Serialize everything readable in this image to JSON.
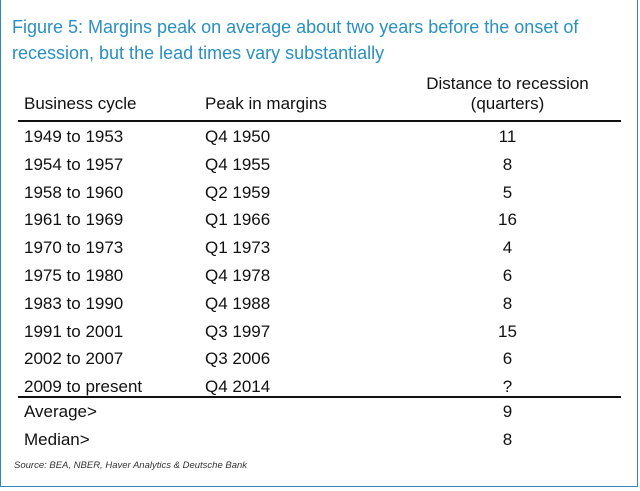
{
  "title": "Figure 5: Margins peak on average about two years before the onset of recession, but the lead times vary substantially",
  "chart_data": {
    "type": "table",
    "columns": [
      "Business cycle",
      "Peak in margins",
      "Distance to recession\n(quarters)"
    ],
    "rows": [
      [
        "1949 to 1953",
        "Q4 1950",
        "11"
      ],
      [
        "1954 to 1957",
        "Q4 1955",
        "8"
      ],
      [
        "1958 to 1960",
        "Q2 1959",
        "5"
      ],
      [
        "1961 to 1969",
        "Q1 1966",
        "16"
      ],
      [
        "1970 to 1973",
        "Q1 1973",
        "4"
      ],
      [
        "1975 to 1980",
        "Q4 1978",
        "6"
      ],
      [
        "1983 to 1990",
        "Q4 1988",
        "8"
      ],
      [
        "1991 to 2001",
        "Q3 1997",
        "15"
      ],
      [
        "2002 to 2007",
        "Q3 2006",
        "6"
      ],
      [
        "2009 to present",
        "Q4 2014",
        "?"
      ]
    ],
    "summary": [
      [
        "Average>",
        "",
        "9"
      ],
      [
        "Median>",
        "",
        "8"
      ]
    ]
  },
  "header": {
    "cycle": "Business cycle",
    "peak": "Peak in margins",
    "distance_line1": "Distance to recession",
    "distance_line2": "(quarters)"
  },
  "source": "Source: BEA, NBER, Haver Analytics & Deutsche Bank",
  "colors": {
    "title": "#2a8fc2",
    "frame": "#2e86b8"
  }
}
